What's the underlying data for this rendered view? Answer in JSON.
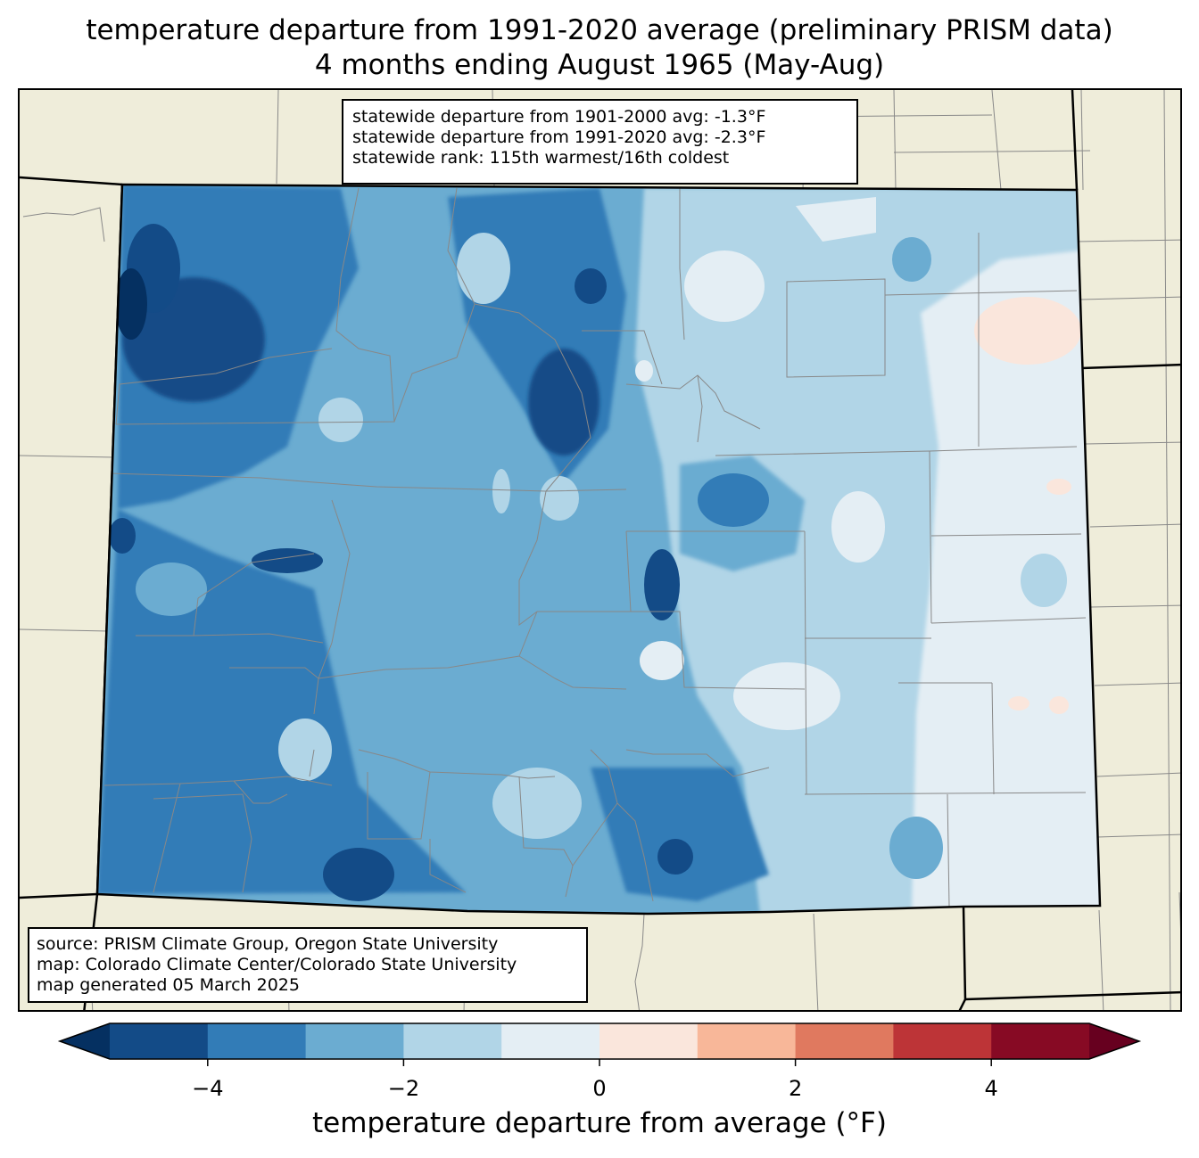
{
  "title": {
    "line1": "temperature departure from 1991-2020 average (preliminary PRISM data)",
    "line2": "4 months ending August 1965 (May-Aug)"
  },
  "stats": {
    "line1": "statewide departure from 1901-2000 avg: -1.3°F",
    "line2": "statewide departure from 1991-2020 avg: -2.3°F",
    "line3": "statewide rank: 115th warmest/16th coldest"
  },
  "source": {
    "line1": "source: PRISM Climate Group, Oregon State University",
    "line2": "map: Colorado Climate Center/Colorado State University",
    "line3": "map generated 05 March 2025"
  },
  "colorbar": {
    "label": "temperature departure from average (°F)",
    "min": -5,
    "max": 5,
    "step": 1,
    "ticks": [
      {
        "value": -4,
        "label": "−4"
      },
      {
        "value": -2,
        "label": "−2"
      },
      {
        "value": 0,
        "label": "0"
      },
      {
        "value": 2,
        "label": "2"
      },
      {
        "value": 4,
        "label": "4"
      }
    ],
    "under_color": "#053061",
    "over_color": "#67001f",
    "bin_colors": [
      "#134b87",
      "#327cb7",
      "#6bacd1",
      "#b1d5e7",
      "#e4eef4",
      "#fae6dc",
      "#f8b799",
      "#e0795f",
      "#bd3437",
      "#870a24"
    ]
  },
  "map": {
    "land_color": "#efedda",
    "state_fill_color": "#6bacd1"
  }
}
